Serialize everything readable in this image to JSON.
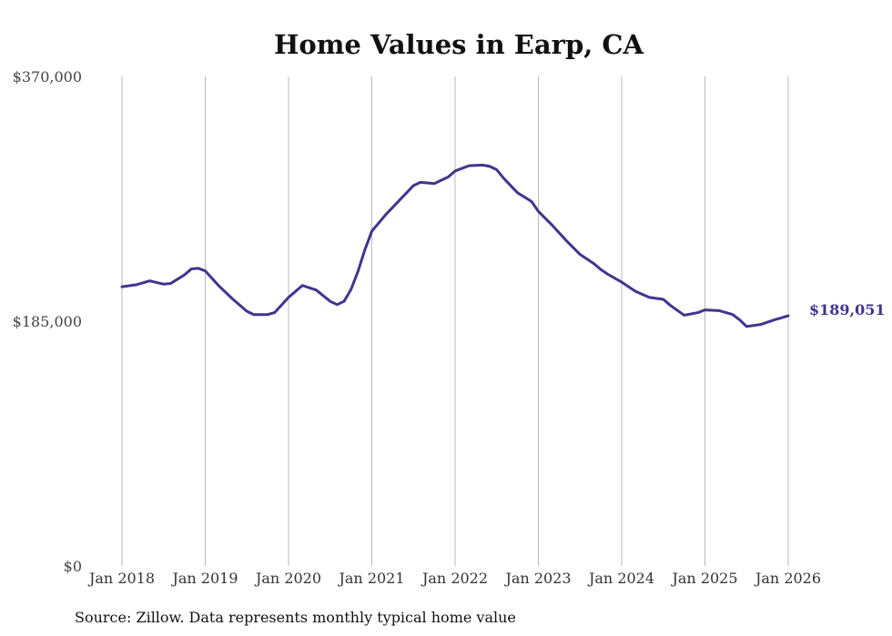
{
  "chart_data": {
    "type": "line",
    "title": "Home Values in Earp, CA",
    "source_note": "Source: Zillow. Data represents monthly typical home value",
    "ylim": [
      0,
      370000
    ],
    "y_ticks": [
      {
        "value": 0,
        "label": "$0"
      },
      {
        "value": 185000,
        "label": "$185,000"
      },
      {
        "value": 370000,
        "label": "$370,000"
      }
    ],
    "x_ticks": [
      {
        "value": "2018-01",
        "label": "Jan 2018"
      },
      {
        "value": "2019-01",
        "label": "Jan 2019"
      },
      {
        "value": "2020-01",
        "label": "Jan 2020"
      },
      {
        "value": "2021-01",
        "label": "Jan 2021"
      },
      {
        "value": "2022-01",
        "label": "Jan 2022"
      },
      {
        "value": "2023-01",
        "label": "Jan 2023"
      },
      {
        "value": "2024-01",
        "label": "Jan 2024"
      },
      {
        "value": "2025-01",
        "label": "Jan 2025"
      },
      {
        "value": "2026-01",
        "label": "Jan 2026"
      }
    ],
    "grid": {
      "vertical": true,
      "horizontal": false
    },
    "line_color": "#3f3591",
    "end_label": "$189,051",
    "series": [
      {
        "x": [
          "2018-01",
          "2018-03",
          "2018-05",
          "2018-07",
          "2018-08",
          "2018-10",
          "2018-11",
          "2018-12",
          "2019-01",
          "2019-03",
          "2019-05",
          "2019-07",
          "2019-08",
          "2019-10",
          "2019-11",
          "2020-01",
          "2020-03",
          "2020-05",
          "2020-07",
          "2020-08",
          "2020-09",
          "2020-10",
          "2020-11",
          "2020-12",
          "2021-01",
          "2021-03",
          "2021-05",
          "2021-07",
          "2021-08",
          "2021-09",
          "2021-10",
          "2021-12",
          "2022-01",
          "2022-03",
          "2022-05",
          "2022-06",
          "2022-07",
          "2022-08",
          "2022-10",
          "2022-12",
          "2023-01",
          "2023-03",
          "2023-05",
          "2023-07",
          "2023-09",
          "2023-10",
          "2023-11",
          "2024-01",
          "2024-03",
          "2024-05",
          "2024-07",
          "2024-08",
          "2024-10",
          "2024-12",
          "2025-01",
          "2025-03",
          "2025-05",
          "2025-06",
          "2025-07",
          "2025-09",
          "2025-11",
          "2026-01"
        ],
        "y": [
          211000,
          212500,
          215500,
          213000,
          213500,
          220000,
          224500,
          225000,
          223000,
          211500,
          201500,
          192500,
          190000,
          190000,
          191500,
          203000,
          212000,
          208500,
          200000,
          197500,
          200000,
          209000,
          222500,
          239000,
          253000,
          265500,
          276500,
          287500,
          290000,
          289500,
          289000,
          294000,
          298500,
          302500,
          303000,
          302000,
          299500,
          293000,
          282000,
          275500,
          268000,
          257500,
          246000,
          235500,
          228500,
          224000,
          220500,
          214500,
          207500,
          203000,
          201500,
          197000,
          189500,
          191500,
          193500,
          193000,
          190000,
          186000,
          181000,
          182500,
          186000,
          189051
        ]
      }
    ]
  }
}
